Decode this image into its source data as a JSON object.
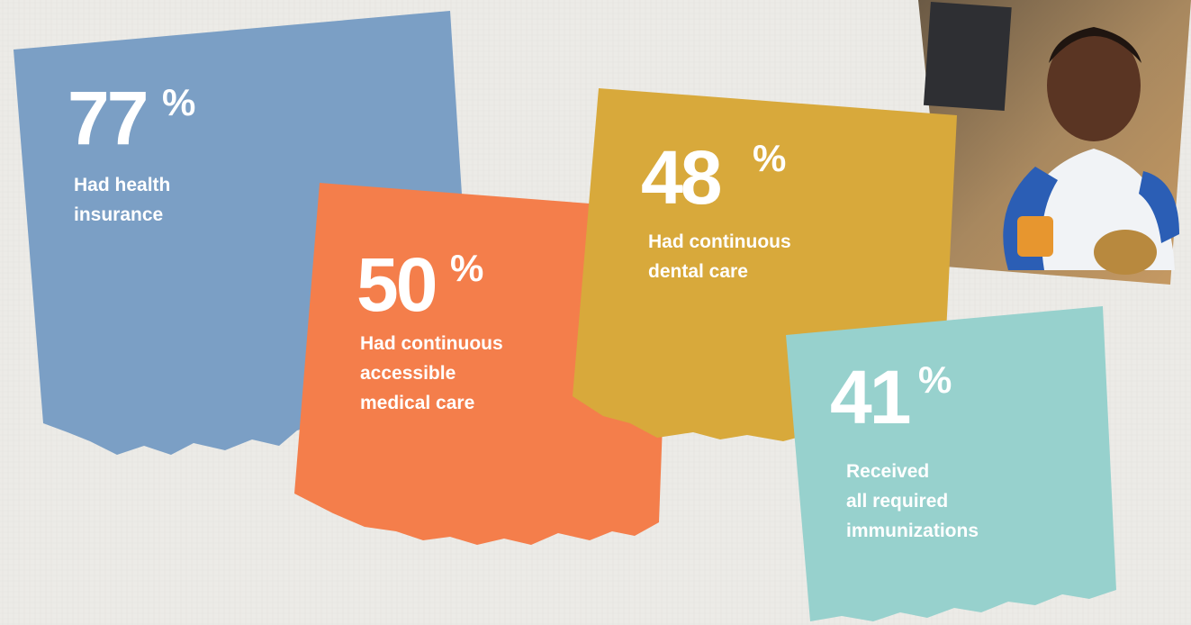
{
  "cards": [
    {
      "value": 77,
      "unit": "%",
      "lines": [
        "Had health",
        "insurance"
      ],
      "color": "#7b9fc5"
    },
    {
      "value": 50,
      "unit": "%",
      "lines": [
        "Had continuous",
        "accessible",
        "medical care"
      ],
      "color": "#f47e4b"
    },
    {
      "value": 48,
      "unit": "%",
      "lines": [
        "Had continuous",
        "dental care"
      ],
      "color": "#d8a93b"
    },
    {
      "value": 41,
      "unit": "%",
      "lines": [
        "Received",
        "all required",
        "immunizations"
      ],
      "color": "#97d1cd"
    }
  ]
}
